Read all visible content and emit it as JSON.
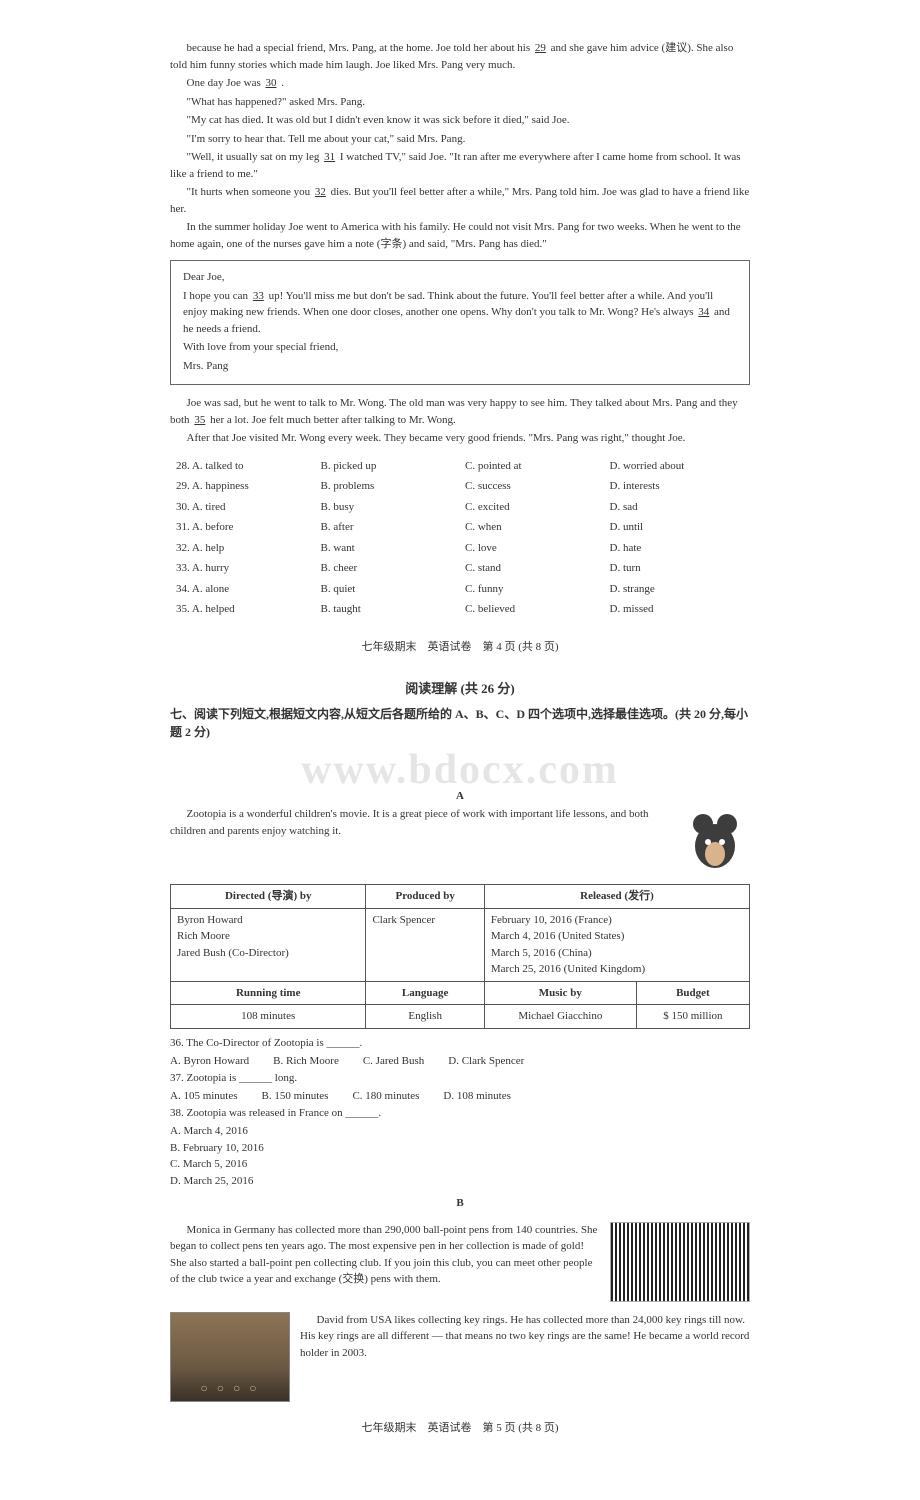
{
  "passage": {
    "para1": "because he had a special friend, Mrs. Pang, at the home. Joe told her about his ",
    "blank29": "29",
    "para1b": " and she gave him advice (建议). She also told him funny stories which made him laugh. Joe liked Mrs. Pang very much.",
    "para2a": "One day Joe was ",
    "blank30": "30",
    "para2b": " .",
    "line3": "\"What has happened?\" asked Mrs. Pang.",
    "line4": "\"My cat has died. It was old but I didn't even know it was sick before it died,\" said Joe.",
    "line5": "\"I'm sorry to hear that. Tell me about your cat,\" said Mrs. Pang.",
    "line6a": "\"Well, it usually sat on my leg ",
    "blank31": "31",
    "line6b": " I watched TV,\" said Joe. \"It ran after me everywhere after I came home from school. It was like a friend to me.\"",
    "line7a": "\"It hurts when someone you ",
    "blank32": "32",
    "line7b": " dies. But you'll feel better after a while,\" Mrs. Pang told him. Joe was glad to have a friend like her.",
    "para8": "In the summer holiday Joe went to America with his family. He could not visit Mrs. Pang for two weeks. When he went to the home again, one of the nurses gave him a note (字条) and said, \"Mrs. Pang has died.\""
  },
  "letter": {
    "salutation": "Dear Joe,",
    "l1a": "I hope you can ",
    "blank33": "33",
    "l1b": " up! You'll miss me but don't be sad. Think about the future. You'll feel better after a while. And you'll enjoy making new friends. When one door closes, another one opens. Why don't you talk to Mr. Wong? He's always ",
    "blank34": "34",
    "l1c": " and he needs a friend.",
    "l2": "With love from your special friend,",
    "l3": "Mrs. Pang"
  },
  "after": {
    "p1a": "Joe was sad, but he went to talk to Mr. Wong. The old man was very happy to see him. They talked about Mrs. Pang and they both ",
    "blank35": "35",
    "p1b": " her a lot. Joe felt much better after talking to Mr. Wong.",
    "p2": "After that Joe visited Mr. Wong every week. They became very good friends. \"Mrs. Pang was right,\" thought Joe."
  },
  "mc": [
    {
      "n": "28.",
      "a": "A. talked to",
      "b": "B. picked up",
      "c": "C. pointed at",
      "d": "D. worried about"
    },
    {
      "n": "29.",
      "a": "A. happiness",
      "b": "B. problems",
      "c": "C. success",
      "d": "D. interests"
    },
    {
      "n": "30.",
      "a": "A. tired",
      "b": "B. busy",
      "c": "C. excited",
      "d": "D. sad"
    },
    {
      "n": "31.",
      "a": "A. before",
      "b": "B. after",
      "c": "C. when",
      "d": "D. until"
    },
    {
      "n": "32.",
      "a": "A. help",
      "b": "B. want",
      "c": "C. love",
      "d": "D. hate"
    },
    {
      "n": "33.",
      "a": "A. hurry",
      "b": "B. cheer",
      "c": "C. stand",
      "d": "D. turn"
    },
    {
      "n": "34.",
      "a": "A. alone",
      "b": "B. quiet",
      "c": "C. funny",
      "d": "D. strange"
    },
    {
      "n": "35.",
      "a": "A. helped",
      "b": "B. taught",
      "c": "C. believed",
      "d": "D. missed"
    }
  ],
  "footer4": "七年级期末　英语试卷　第 4 页 (共 8 页)",
  "reading": {
    "title": "阅读理解 (共 26 分)",
    "instr": "七、阅读下列短文,根据短文内容,从短文后各题所给的 A、B、C、D 四个选项中,选择最佳选项。(共 20 分,每小题 2 分)",
    "watermark": "www.bdocx.com",
    "A_label": "A",
    "A_intro": "Zootopia is a wonderful children's movie. It is a great piece of work with important life lessons, and both children and parents enjoy watching it."
  },
  "zootopia": {
    "h_directed": "Directed (导演) by",
    "h_produced": "Produced by",
    "h_released": "Released (发行)",
    "directed": [
      "Byron Howard",
      "Rich Moore",
      "Jared Bush (Co-Director)"
    ],
    "produced": "Clark Spencer",
    "released": [
      "February 10, 2016 (France)",
      "March 4, 2016 (United States)",
      "March 5, 2016 (China)",
      "March 25, 2016 (United Kingdom)"
    ],
    "h_runtime": "Running time",
    "h_language": "Language",
    "h_music": "Music by",
    "h_budget": "Budget",
    "runtime": "108 minutes",
    "language": "English",
    "music": "Michael Giacchino",
    "budget": "$ 150 million"
  },
  "qA": [
    {
      "n": "36.",
      "stem": "The Co-Director of Zootopia is ______.",
      "opts": [
        "A. Byron Howard",
        "B. Rich Moore",
        "C. Jared Bush",
        "D. Clark Spencer"
      ]
    },
    {
      "n": "37.",
      "stem": "Zootopia is ______ long.",
      "opts": [
        "A. 105 minutes",
        "B. 150 minutes",
        "C. 180 minutes",
        "D. 108 minutes"
      ]
    },
    {
      "n": "38.",
      "stem": "Zootopia was released in France on ______.",
      "opts": [
        "A. March 4, 2016",
        "B. February 10, 2016",
        "C. March 5, 2016",
        "D. March 25, 2016"
      ]
    }
  ],
  "B_label": "B",
  "B": {
    "p1": "Monica in Germany has collected more than 290,000 ball-point pens from 140 countries. She began to collect pens ten years ago. The most expensive pen in her collection is made of gold! She also started a ball-point pen collecting club. If you join this club, you can meet other people of the club twice a year and exchange (交换) pens with them.",
    "p2": "David from USA likes collecting key rings. He has collected more than 24,000 key rings till now. His key rings are all different — that means no two key rings are the same! He became a world record holder in 2003."
  },
  "footer5": "七年级期末　英语试卷　第 5 页 (共 8 页)"
}
